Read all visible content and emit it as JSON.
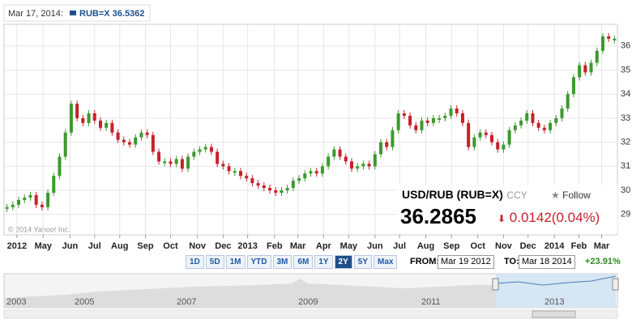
{
  "header": {
    "date": "Mar 17, 2014:",
    "legend": "RUB=X 36.5362"
  },
  "chart_data": {
    "type": "candlestick",
    "series": [
      {
        "name": "RUB=X",
        "values": [
          29.3,
          29.4,
          29.6,
          29.7,
          29.8,
          29.4,
          29.3,
          29.9,
          30.6,
          31.4,
          32.4,
          33.6,
          33.0,
          32.8,
          33.2,
          32.9,
          32.6,
          32.8,
          32.4,
          32.1,
          32.0,
          31.9,
          32.2,
          32.4,
          32.3,
          31.6,
          31.2,
          31.2,
          31.1,
          31.3,
          30.9,
          31.4,
          31.6,
          31.7,
          31.8,
          31.6,
          31.1,
          31.0,
          30.8,
          30.8,
          30.6,
          30.5,
          30.3,
          30.2,
          30.1,
          30.0,
          29.9,
          30.0,
          30.1,
          30.4,
          30.5,
          30.7,
          30.8,
          30.7,
          31.0,
          31.4,
          31.7,
          31.4,
          31.2,
          30.9,
          31.0,
          31.1,
          31.0,
          31.5,
          32.0,
          31.8,
          32.5,
          33.2,
          33.1,
          32.7,
          32.5,
          32.9,
          32.8,
          33.0,
          33.0,
          33.1,
          33.4,
          33.2,
          32.8,
          31.8,
          32.2,
          32.4,
          32.3,
          32.0,
          31.7,
          31.9,
          32.5,
          32.7,
          32.9,
          33.2,
          32.8,
          32.6,
          32.5,
          32.8,
          33.0,
          33.4,
          34.0,
          34.7,
          35.2,
          34.9,
          35.3,
          35.8,
          36.4,
          36.3,
          36.3
        ]
      }
    ],
    "up_color": "#3b9a2c",
    "down_color": "#c8202a",
    "xlim": [
      -0.5,
      104.5
    ],
    "xticks": [
      {
        "value": 1.7,
        "label": "2012"
      },
      {
        "value": 6.2,
        "label": "May"
      },
      {
        "value": 10.8,
        "label": "Jun"
      },
      {
        "value": 15.0,
        "label": "Jul"
      },
      {
        "value": 19.3,
        "label": "Aug"
      },
      {
        "value": 23.7,
        "label": "Sep"
      },
      {
        "value": 28.0,
        "label": "Oct"
      },
      {
        "value": 32.6,
        "label": "Nov"
      },
      {
        "value": 37.0,
        "label": "Dec"
      },
      {
        "value": 41.2,
        "label": "2013"
      },
      {
        "value": 45.8,
        "label": "Feb"
      },
      {
        "value": 49.8,
        "label": "Mar"
      },
      {
        "value": 54.2,
        "label": "Apr"
      },
      {
        "value": 58.5,
        "label": "May"
      },
      {
        "value": 63.0,
        "label": "Jun"
      },
      {
        "value": 67.2,
        "label": "Jul"
      },
      {
        "value": 71.7,
        "label": "Aug"
      },
      {
        "value": 76.1,
        "label": "Sep"
      },
      {
        "value": 80.6,
        "label": "Oct"
      },
      {
        "value": 85.0,
        "label": "Nov"
      },
      {
        "value": 89.2,
        "label": "Dec"
      },
      {
        "value": 93.7,
        "label": "2014"
      },
      {
        "value": 97.9,
        "label": "Feb"
      },
      {
        "value": 101.8,
        "label": "Mar"
      }
    ],
    "ylim": [
      28.15,
      36.9
    ],
    "yticks": [
      29,
      30,
      31,
      32,
      33,
      34,
      35,
      36
    ],
    "grid": true,
    "watermark": "© 2014 Yahoo! Inc."
  },
  "quote": {
    "name": "USD/RUB (RUB=X)",
    "type": "- CCY",
    "follow": "Follow",
    "price": "36.2865",
    "change": "0.0142(0.04%)"
  },
  "controls": {
    "ranges": [
      "1D",
      "5D",
      "1M",
      "YTD",
      "3M",
      "6M",
      "1Y",
      "2Y",
      "5Y",
      "Max"
    ],
    "active": "2Y",
    "from_label": "FROM:",
    "from": "Mar 19 2012",
    "to_label": "TO:",
    "to": "Mar 18 2014",
    "return": "+23.91%"
  },
  "navigator": {
    "years": [
      "2003",
      "2005",
      "2007",
      "2009",
      "2011",
      "2013"
    ]
  }
}
